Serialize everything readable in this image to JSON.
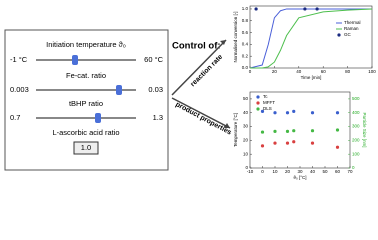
{
  "panel": {
    "sliders": [
      {
        "label": "Initiation temperature ϑ₀",
        "min_label": "-1 °C",
        "max_label": "60 °C"
      },
      {
        "label": "Fe-cat. ratio",
        "min_label": "0.003",
        "max_label": "0.03"
      },
      {
        "label": "tBHP ratio",
        "min_label": "0.7",
        "max_label": "1.3"
      }
    ],
    "input": {
      "label": "L-ascorbic acid ratio",
      "value": "1.0"
    }
  },
  "control": {
    "title": "Control of:",
    "targets": [
      "reaction rate",
      "product properties"
    ]
  },
  "chart_data": [
    {
      "type": "line",
      "xlabel": "Time [min]",
      "ylabel": "Normalised conversion [-]",
      "x": [
        0,
        10,
        15,
        20,
        25,
        30,
        40,
        60,
        80,
        100
      ],
      "xlim": [
        0,
        100
      ],
      "xticks": [
        0,
        20,
        40,
        60,
        80,
        100
      ],
      "ylim": [
        0,
        1.05
      ],
      "yticks": [
        {
          "value": 0,
          "label": "0.0"
        },
        0.2,
        0.4,
        0.6,
        0.8,
        {
          "value": 1,
          "label": "1.0"
        }
      ],
      "legend": "center right",
      "series": [
        {
          "name": "Thermal",
          "color": "#4a5fd8",
          "values": [
            0,
            0.05,
            0.4,
            0.85,
            0.97,
            1,
            1,
            1,
            1,
            1
          ]
        },
        {
          "name": "Raman",
          "color": "#4dbf4d",
          "values": [
            0,
            0,
            0.02,
            0.1,
            0.3,
            0.55,
            0.85,
            0.95,
            0.98,
            1
          ]
        },
        {
          "name": "GC",
          "color": "#1a2a80",
          "marker": true,
          "x": [
            5,
            45,
            55
          ],
          "values": [
            1,
            1,
            1
          ]
        }
      ]
    },
    {
      "type": "scatter",
      "xlabel": "ϑ₀ [°C]",
      "ylabel": "Temperature [°C]",
      "y2label": "Particle Size [nm]",
      "x": [
        0,
        10,
        20,
        25,
        40,
        60
      ],
      "xlim": [
        -10,
        70
      ],
      "xticks": [
        -10,
        0,
        10,
        20,
        30,
        40,
        50,
        60,
        70
      ],
      "ylim": [
        0,
        55
      ],
      "yticks": [
        0,
        10,
        20,
        30,
        40,
        50
      ],
      "y2lim": [
        0,
        550
      ],
      "y2ticks": [
        0,
        100,
        200,
        300,
        400,
        500
      ],
      "legend": "upper left",
      "series": [
        {
          "name": "Tc",
          "color": "#3a5fcd",
          "values": [
            41,
            40,
            40,
            41,
            40,
            40
          ]
        },
        {
          "name": "MFFT",
          "color": "#d94040",
          "values": [
            16,
            18,
            18,
            19,
            18,
            15
          ]
        },
        {
          "name": "DLS",
          "color": "#44b844",
          "axis": "y2",
          "values": [
            260,
            265,
            265,
            270,
            270,
            275
          ]
        }
      ]
    }
  ]
}
